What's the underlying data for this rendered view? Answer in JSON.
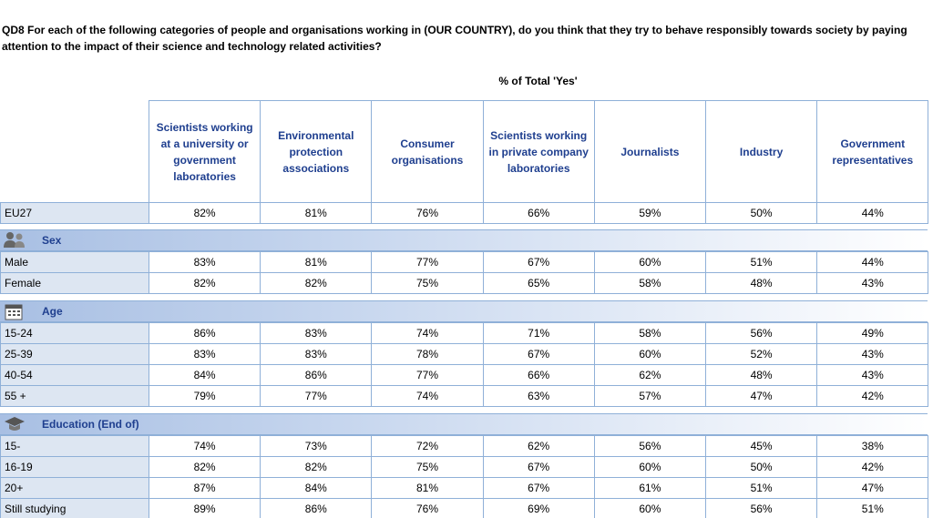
{
  "question": "QD8 For each of the following categories of people and organisations working in (OUR COUNTRY), do you think that they try to behave responsibly towards society by paying attention to the impact of their science and technology related activities?",
  "subtitle": "% of Total 'Yes'",
  "table": {
    "columns": [
      "Scientists working at a university or government laboratories",
      "Environmental protection associations",
      "Consumer organisations",
      "Scientists working in private company laboratories",
      "Journalists",
      "Industry",
      "Government representatives"
    ],
    "total": {
      "label": "EU27",
      "values": [
        "82%",
        "81%",
        "76%",
        "66%",
        "59%",
        "50%",
        "44%"
      ]
    },
    "sections": [
      {
        "title": "Sex",
        "rows": [
          {
            "label": "Male",
            "values": [
              "83%",
              "81%",
              "77%",
              "67%",
              "60%",
              "51%",
              "44%"
            ]
          },
          {
            "label": "Female",
            "values": [
              "82%",
              "82%",
              "75%",
              "65%",
              "58%",
              "48%",
              "43%"
            ]
          }
        ]
      },
      {
        "title": "Age",
        "rows": [
          {
            "label": "15-24",
            "values": [
              "86%",
              "83%",
              "74%",
              "71%",
              "58%",
              "56%",
              "49%"
            ]
          },
          {
            "label": "25-39",
            "values": [
              "83%",
              "83%",
              "78%",
              "67%",
              "60%",
              "52%",
              "43%"
            ]
          },
          {
            "label": "40-54",
            "values": [
              "84%",
              "86%",
              "77%",
              "66%",
              "62%",
              "48%",
              "43%"
            ]
          },
          {
            "label": "55 +",
            "values": [
              "79%",
              "77%",
              "74%",
              "63%",
              "57%",
              "47%",
              "42%"
            ]
          }
        ]
      },
      {
        "title": "Education (End of)",
        "rows": [
          {
            "label": "15-",
            "values": [
              "74%",
              "73%",
              "72%",
              "62%",
              "56%",
              "45%",
              "38%"
            ]
          },
          {
            "label": "16-19",
            "values": [
              "82%",
              "82%",
              "75%",
              "67%",
              "60%",
              "50%",
              "42%"
            ]
          },
          {
            "label": "20+",
            "values": [
              "87%",
              "84%",
              "81%",
              "67%",
              "61%",
              "51%",
              "47%"
            ]
          },
          {
            "label": "Still studying",
            "values": [
              "89%",
              "86%",
              "76%",
              "69%",
              "60%",
              "56%",
              "51%"
            ]
          }
        ]
      }
    ]
  }
}
